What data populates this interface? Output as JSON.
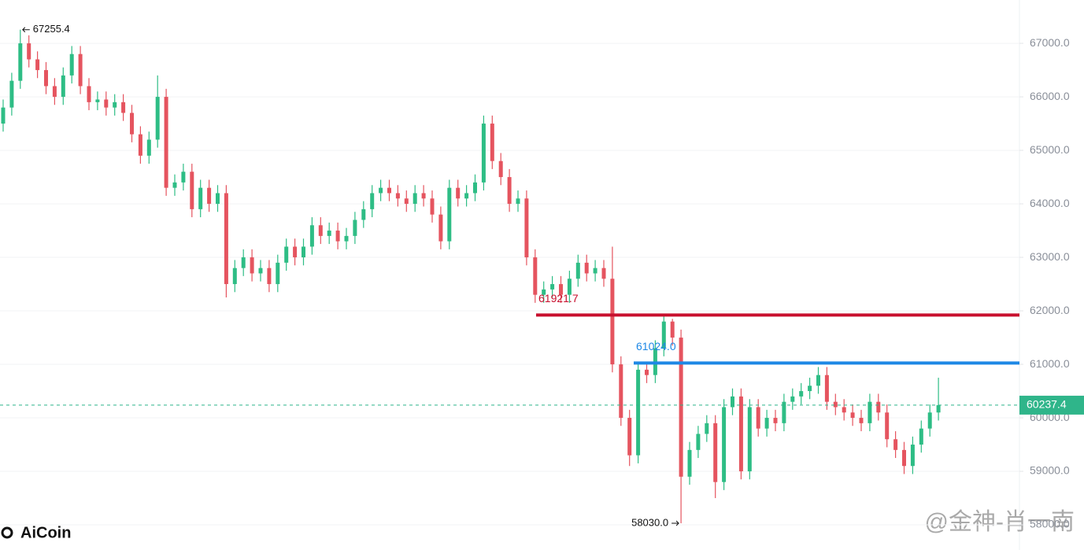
{
  "chart_data": {
    "type": "candlestick",
    "up_color": "#2ebd85",
    "down_color": "#e5545f",
    "grid": true,
    "ylim": [
      57530,
      67810
    ],
    "yticks": [
      {
        "value": 58000,
        "label": "58000.0"
      },
      {
        "value": 59000,
        "label": "59000.0"
      },
      {
        "value": 60000,
        "label": "60000.0"
      },
      {
        "value": 61000,
        "label": "61000.0"
      },
      {
        "value": 62000,
        "label": "62000.0"
      },
      {
        "value": 63000,
        "label": "63000.0"
      },
      {
        "value": 64000,
        "label": "64000.0"
      },
      {
        "value": 65000,
        "label": "65000.0"
      },
      {
        "value": 66000,
        "label": "66000.0"
      },
      {
        "value": 67000,
        "label": "67000.0"
      }
    ],
    "open": [
      65500,
      65800,
      66300,
      67000,
      66700,
      66500,
      66200,
      66000,
      66400,
      66800,
      66200,
      65900,
      65950,
      65800,
      65900,
      65700,
      65300,
      64900,
      65200,
      66000,
      64300,
      64400,
      64600,
      63900,
      64300,
      64000,
      64200,
      62500,
      62800,
      63000,
      62700,
      62800,
      62500,
      62900,
      63200,
      63000,
      63200,
      63600,
      63400,
      63500,
      63300,
      63400,
      63700,
      63900,
      64200,
      64300,
      64200,
      64100,
      64000,
      64200,
      64100,
      63800,
      63300,
      64300,
      64100,
      64200,
      64400,
      65500,
      64800,
      64500,
      64000,
      64100,
      63000,
      62300,
      62400,
      62500,
      62300,
      62600,
      62900,
      62700,
      62800,
      62600,
      61000,
      60000,
      59300,
      60900,
      60800,
      61300,
      61800,
      61500,
      58900,
      59400,
      59700,
      59900,
      58800,
      60200,
      60400,
      59000,
      60200,
      59800,
      60000,
      59900,
      60300,
      60400,
      60500,
      60600,
      60800,
      60300,
      60200,
      60100,
      60000,
      59900,
      60300,
      60100,
      59600,
      59400,
      59100,
      59500,
      59800,
      60100
    ],
    "high": [
      65950,
      66450,
      67255.4,
      67150,
      66850,
      66650,
      66350,
      66550,
      66950,
      66950,
      66350,
      66100,
      66100,
      66050,
      66050,
      65850,
      65450,
      65350,
      66400,
      66150,
      64550,
      64750,
      64750,
      64450,
      64450,
      64350,
      64350,
      62950,
      63150,
      63150,
      62950,
      62950,
      63050,
      63350,
      63350,
      63350,
      63750,
      63750,
      63650,
      63650,
      63550,
      63850,
      64050,
      64350,
      64450,
      64450,
      64350,
      64250,
      64350,
      64350,
      64250,
      63950,
      64450,
      64450,
      64350,
      64550,
      65650,
      65650,
      64950,
      64650,
      64250,
      64250,
      63150,
      62550,
      62650,
      62650,
      62750,
      63050,
      63050,
      62950,
      62950,
      63200,
      61150,
      60150,
      61050,
      61050,
      61450,
      61921.7,
      61850,
      61650,
      59550,
      59850,
      60050,
      60050,
      60350,
      60550,
      60550,
      60350,
      60350,
      60150,
      60150,
      60450,
      60550,
      60650,
      60750,
      60950,
      60950,
      60450,
      60350,
      60250,
      60150,
      60450,
      60450,
      60250,
      59750,
      59550,
      59650,
      59950,
      60250,
      60750
    ],
    "low": [
      65350,
      65650,
      66150,
      66550,
      66350,
      66050,
      65850,
      65850,
      66250,
      66050,
      65750,
      65750,
      65650,
      65650,
      65550,
      65150,
      64750,
      64750,
      65050,
      64150,
      64150,
      64250,
      63750,
      63750,
      63850,
      63850,
      62250,
      62350,
      62650,
      62550,
      62550,
      62350,
      62350,
      62750,
      62850,
      62850,
      63050,
      63250,
      63250,
      63150,
      63150,
      63250,
      63550,
      63750,
      64050,
      64050,
      63950,
      63850,
      63850,
      63950,
      63650,
      63150,
      63150,
      63950,
      63950,
      64050,
      64250,
      64650,
      64350,
      63850,
      63850,
      62850,
      62150,
      62150,
      62250,
      62150,
      62150,
      62450,
      62550,
      62550,
      62450,
      60850,
      59850,
      59100,
      59150,
      60650,
      60650,
      61150,
      61350,
      58030.0,
      58750,
      59250,
      59550,
      58500,
      58650,
      60050,
      58850,
      58850,
      59650,
      59650,
      59750,
      59750,
      60150,
      60250,
      60350,
      60450,
      60150,
      60050,
      59950,
      59850,
      59750,
      59750,
      59950,
      59450,
      59250,
      58950,
      58950,
      59350,
      59650,
      59950
    ],
    "close": [
      65800,
      66300,
      67000,
      66700,
      66500,
      66200,
      66000,
      66400,
      66800,
      66200,
      65900,
      65950,
      65800,
      65900,
      65700,
      65300,
      64900,
      65200,
      66000,
      64300,
      64400,
      64600,
      63900,
      64300,
      64000,
      64200,
      62500,
      62800,
      63000,
      62700,
      62800,
      62500,
      62900,
      63200,
      63000,
      63200,
      63600,
      63400,
      63500,
      63300,
      63400,
      63700,
      63900,
      64200,
      64300,
      64200,
      64100,
      64000,
      64200,
      64100,
      63800,
      63300,
      64300,
      64100,
      64200,
      64400,
      65500,
      64800,
      64500,
      64000,
      64100,
      63000,
      62300,
      62400,
      62500,
      62300,
      62600,
      62900,
      62700,
      62800,
      62600,
      61000,
      60000,
      59300,
      60900,
      60800,
      61300,
      61800,
      61500,
      58900,
      59400,
      59700,
      59900,
      58800,
      60200,
      60400,
      59000,
      60200,
      59800,
      60000,
      59900,
      60300,
      60400,
      60500,
      60600,
      60800,
      60300,
      60200,
      60100,
      60000,
      59900,
      60300,
      60100,
      59600,
      59400,
      59100,
      59500,
      59800,
      60100,
      60237.4
    ],
    "high_label": "67255.4",
    "low_label": "58030.0",
    "levels": [
      {
        "value": 61921.7,
        "label": "61921.7",
        "color": "#c8102e"
      },
      {
        "value": 61024.0,
        "label": "61024.0",
        "color": "#1e88e5"
      }
    ],
    "last_price": {
      "value": 60237.4,
      "label": "60237.4",
      "color": "#2fb58a"
    },
    "logo": "AiCoin",
    "watermark": "@金神-肖一南"
  }
}
